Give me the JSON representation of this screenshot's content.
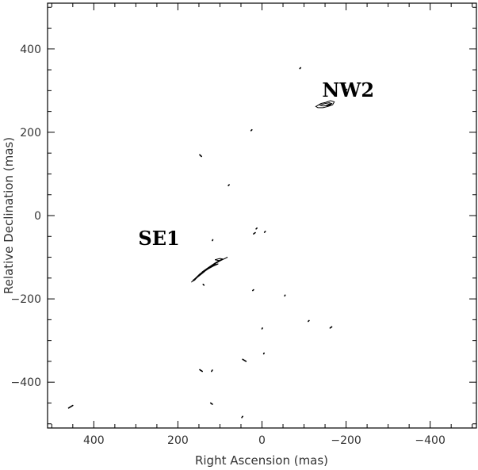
{
  "chart_data": {
    "type": "contour",
    "xlabel": "Right Ascension  (mas)",
    "ylabel": "Relative Declination  (mas)",
    "xlim": [
      510,
      -510
    ],
    "ylim": [
      -510,
      510
    ],
    "xticks_major": [
      400,
      200,
      0,
      -200,
      -400
    ],
    "yticks_major": [
      400,
      200,
      0,
      -200,
      -400
    ],
    "xtick_labels": [
      "400",
      "200",
      "0",
      "−200",
      "−400"
    ],
    "ytick_labels": [
      "400",
      "200",
      "0",
      "−200",
      "−400"
    ],
    "minor_tick_step": 50,
    "grid": false,
    "annotations": [
      {
        "text": "NW2",
        "x": -205,
        "y": 285
      },
      {
        "text": "SE1",
        "x": 245,
        "y": -70
      }
    ],
    "components": [
      {
        "name": "NW2",
        "contours": [
          [
            [
              -130,
              263
            ],
            [
              -140,
              269
            ],
            [
              -152,
              272
            ],
            [
              -163,
              276
            ],
            [
              -172,
              273
            ],
            [
              -168,
              266
            ],
            [
              -157,
              262
            ],
            [
              -145,
              259
            ],
            [
              -133,
              259
            ],
            [
              -128,
              262
            ]
          ],
          [
            [
              -138,
              265
            ],
            [
              -150,
              269
            ],
            [
              -160,
              271
            ],
            [
              -166,
              269
            ],
            [
              -158,
              265
            ],
            [
              -146,
              263
            ]
          ],
          [
            [
              -152,
              264
            ],
            [
              -160,
              268
            ],
            [
              -164,
              267
            ],
            [
              -158,
              263
            ]
          ]
        ]
      },
      {
        "name": "SE1",
        "contours": [
          [
            [
              168,
              -160
            ],
            [
              158,
              -150
            ],
            [
              148,
              -140
            ],
            [
              135,
              -131
            ],
            [
              120,
              -121
            ],
            [
              102,
              -110
            ],
            [
              88,
              -103
            ],
            [
              82,
              -100
            ],
            [
              90,
              -104
            ],
            [
              102,
              -108
            ],
            [
              112,
              -114
            ],
            [
              128,
              -125
            ],
            [
              142,
              -135
            ],
            [
              152,
              -146
            ],
            [
              160,
              -155
            ],
            [
              166,
              -158
            ]
          ],
          [
            [
              164,
              -155
            ],
            [
              152,
              -146
            ],
            [
              140,
              -136
            ],
            [
              128,
              -128
            ],
            [
              115,
              -121
            ],
            [
              104,
              -116
            ],
            [
              112,
              -118
            ],
            [
              125,
              -126
            ],
            [
              138,
              -135
            ],
            [
              150,
              -145
            ],
            [
              160,
              -152
            ]
          ],
          [
            [
              156,
              -150
            ],
            [
              146,
              -142
            ],
            [
              136,
              -134
            ],
            [
              142,
              -139
            ],
            [
              152,
              -146
            ]
          ],
          [
            [
              112,
              -106
            ],
            [
              100,
              -103
            ],
            [
              94,
              -104
            ],
            [
              102,
              -108
            ]
          ]
        ]
      }
    ],
    "specks": [
      [
        [
          144,
          142
        ],
        [
          148,
          146
        ]
      ],
      [
        [
          460,
          -462
        ],
        [
          450,
          -456
        ]
      ],
      [
        [
          142,
          -374
        ],
        [
          148,
          -370
        ]
      ],
      [
        [
          38,
          -350
        ],
        [
          46,
          -345
        ]
      ],
      [
        [
          118,
          -453
        ],
        [
          122,
          -450
        ]
      ],
      [
        [
          20,
          -44
        ],
        [
          16,
          -41
        ]
      ],
      [
        [
          14,
          -32
        ],
        [
          12,
          -30
        ]
      ],
      [
        [
          -6,
          -40
        ],
        [
          -8,
          -38
        ]
      ],
      [
        [
          138,
          -167
        ],
        [
          140,
          -165
        ]
      ],
      [
        [
          -90,
          353
        ],
        [
          -92,
          355
        ]
      ],
      [
        [
          26,
          204
        ],
        [
          24,
          206
        ]
      ],
      [
        [
          80,
          72
        ],
        [
          78,
          74
        ]
      ],
      [
        [
          22,
          -180
        ],
        [
          20,
          -178
        ]
      ],
      [
        [
          -54,
          -193
        ],
        [
          -55,
          -191
        ]
      ],
      [
        [
          -110,
          -254
        ],
        [
          -112,
          -252
        ]
      ],
      [
        [
          -162,
          -270
        ],
        [
          -166,
          -267
        ]
      ],
      [
        [
          0,
          -272
        ],
        [
          -1,
          -270
        ]
      ],
      [
        [
          -4,
          -332
        ],
        [
          -5,
          -330
        ]
      ],
      [
        [
          120,
          -374
        ],
        [
          118,
          -371
        ]
      ],
      [
        [
          48,
          -485
        ],
        [
          46,
          -482
        ]
      ],
      [
        [
          -200,
          302
        ],
        [
          -202,
          303
        ]
      ],
      [
        [
          118,
          -60
        ],
        [
          117,
          -58
        ]
      ]
    ]
  }
}
